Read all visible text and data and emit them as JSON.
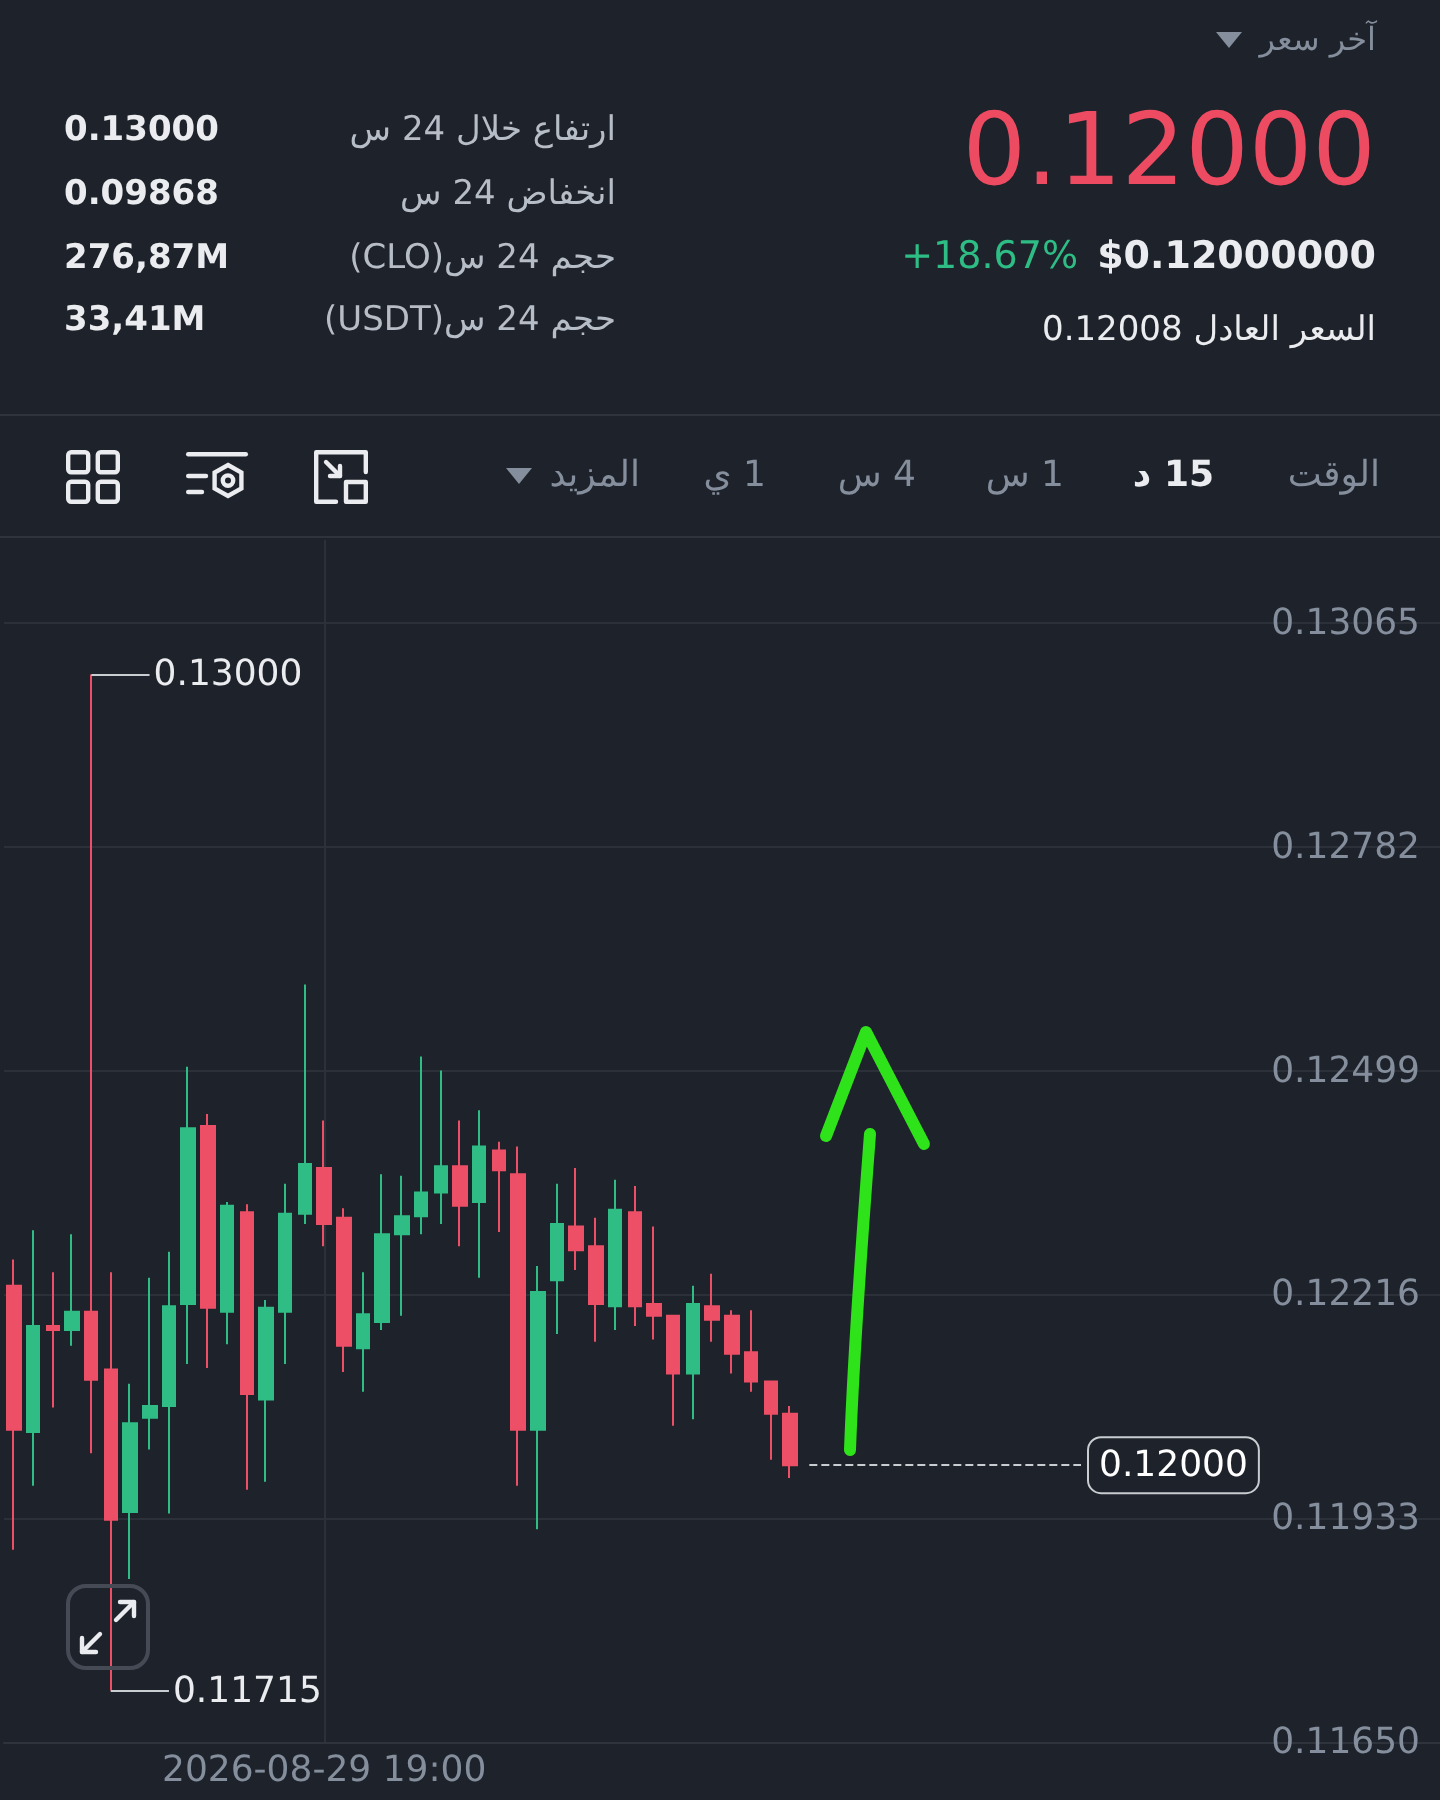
{
  "chart_data": {
    "type": "candlestick",
    "categories": [
      null,
      null,
      null,
      null,
      null,
      null,
      null,
      null,
      null,
      null,
      null,
      null,
      null,
      null,
      null,
      null,
      "2026-08-29 19:00",
      null,
      null,
      null,
      null,
      null,
      null,
      null,
      null,
      null,
      null,
      null,
      null,
      null,
      null,
      null,
      null,
      null,
      null,
      null,
      null,
      null,
      null,
      null,
      null,
      null,
      null,
      null,
      null,
      null,
      null,
      null,
      null,
      null,
      null,
      null,
      null,
      null,
      null,
      null,
      null,
      null,
      null,
      null,
      null,
      null,
      null,
      null,
      null,
      null,
      null,
      null,
      null,
      null,
      null,
      null,
      null,
      null
    ],
    "ohlc": [
      [
        0.12227,
        0.1226,
        0.11893,
        0.12045
      ],
      [
        0.12042,
        0.12297,
        0.11974,
        0.12176
      ],
      [
        0.12176,
        0.12244,
        0.12073,
        0.12171
      ],
      [
        0.12171,
        0.12292,
        0.12151,
        0.12194
      ],
      [
        0.12194,
        0.13,
        0.12015,
        0.12108
      ],
      [
        0.12121,
        0.12244,
        0.11715,
        0.11931
      ],
      [
        0.11941,
        0.12103,
        0.11856,
        0.12053
      ],
      [
        0.1206,
        0.12237,
        0.1202,
        0.12075
      ],
      [
        0.12075,
        0.1227,
        0.11939,
        0.12201
      ],
      [
        0.12204,
        0.12504,
        0.12128,
        0.12426
      ],
      [
        0.12429,
        0.12444,
        0.12123,
        0.12199
      ],
      [
        0.12194,
        0.12333,
        0.12153,
        0.12328
      ],
      [
        0.1232,
        0.1233,
        0.11969,
        0.1209
      ],
      [
        0.12083,
        0.12209,
        0.11979,
        0.12199
      ],
      [
        0.12194,
        0.12356,
        0.12128,
        0.12318
      ],
      [
        0.12318,
        0.12608,
        0.12305,
        0.12381
      ],
      [
        0.12376,
        0.12436,
        0.12277,
        0.12305
      ],
      [
        0.12313,
        0.12325,
        0.12118,
        0.12151
      ],
      [
        0.12148,
        0.12244,
        0.12093,
        0.12191
      ],
      [
        0.12181,
        0.12368,
        0.12171,
        0.12292
      ],
      [
        0.12292,
        0.12366,
        0.12189,
        0.12315
      ],
      [
        0.12315,
        0.12517,
        0.12292,
        0.12345
      ],
      [
        0.12345,
        0.12499,
        0.12305,
        0.12378
      ],
      [
        0.12378,
        0.12436,
        0.12277,
        0.12328
      ],
      [
        0.12333,
        0.12449,
        0.12237,
        0.12403
      ],
      [
        0.12398,
        0.12409,
        0.12295,
        0.12373
      ],
      [
        0.12368,
        0.12403,
        0.11974,
        0.12045
      ],
      [
        0.12045,
        0.12252,
        0.11919,
        0.12219
      ],
      [
        0.12234,
        0.12356,
        0.12166,
        0.12305
      ],
      [
        0.12302,
        0.12376,
        0.12247,
        0.12272
      ],
      [
        0.12277,
        0.12313,
        0.12156,
        0.12204
      ],
      [
        0.12201,
        0.12361,
        0.12171,
        0.12323
      ],
      [
        0.1232,
        0.12353,
        0.12176,
        0.12201
      ],
      [
        0.12204,
        0.12302,
        0.12159,
        0.12189
      ],
      [
        0.12189,
        0.1219,
        0.1205,
        0.12116
      ],
      [
        0.12116,
        0.12227,
        0.12058,
        0.12204
      ],
      [
        0.12201,
        0.12242,
        0.12156,
        0.12184
      ],
      [
        0.12189,
        0.12196,
        0.12116,
        0.12141
      ],
      [
        0.12143,
        0.12196,
        0.12093,
        0.12106
      ],
      [
        0.12106,
        0.12107,
        0.12007,
        0.12065
      ],
      [
        0.12065,
        0.12075,
        0.11984,
        0.12
      ],
      null,
      null,
      null,
      null,
      null,
      null,
      null,
      null,
      null,
      null,
      null,
      null,
      null,
      null,
      null,
      null,
      null,
      null,
      null,
      null,
      null,
      null,
      null,
      null,
      null,
      null,
      null,
      null,
      null,
      null,
      null,
      null,
      null
    ],
    "colors": [
      "#ec4f66",
      "#2fbd85",
      "#ec4f66",
      "#2fbd85",
      "#ec4f66",
      "#ec4f66",
      "#2fbd85",
      "#2fbd85",
      "#2fbd85",
      "#2fbd85",
      "#ec4f66",
      "#2fbd85",
      "#ec4f66",
      "#2fbd85",
      "#2fbd85",
      "#2fbd85",
      "#ec4f66",
      "#ec4f66",
      "#2fbd85",
      "#2fbd85",
      "#2fbd85",
      "#2fbd85",
      "#2fbd85",
      "#ec4f66",
      "#2fbd85",
      "#ec4f66",
      "#ec4f66",
      "#2fbd85",
      "#2fbd85",
      "#ec4f66",
      "#ec4f66",
      "#2fbd85",
      "#ec4f66",
      "#ec4f66",
      "#ec4f66",
      "#2fbd85",
      "#ec4f66",
      "#ec4f66",
      "#ec4f66",
      "#ec4f66",
      "#ec4f66",
      null,
      null,
      null,
      null,
      null,
      null,
      null,
      null,
      null,
      null,
      null,
      null,
      null,
      null,
      null,
      null,
      null,
      null,
      null,
      null,
      null,
      null,
      null,
      null,
      null,
      null,
      null,
      null,
      null,
      null,
      null,
      null,
      null
    ],
    "ylim": [
      0.1165,
      0.1317
    ],
    "yticks": [
      {
        "value": 0.1165,
        "label": "0.11650"
      },
      0.11933,
      0.12216,
      0.12499,
      0.12782,
      0.13065
    ],
    "grid": true,
    "ref_lines": [
      {
        "axis": "y",
        "value": 0.12,
        "label": "0.12000",
        "line_style": "dashed",
        "color": "#c9ccd1"
      }
    ],
    "annotations": [
      "آخر سعر",
      "0.12000",
      "+18.67%",
      "$0.12000000",
      "السعر العادل 0.12008",
      "ارتفاع خلال 24 س",
      "0.13000",
      "انخفاض 24 س",
      "0.09868",
      "حجم 24 س(CLO)",
      "276,87M",
      "حجم 24 س(USDT)",
      "33,41M",
      "الوقت",
      "15 د",
      "1 س",
      "4 س",
      "1 ي",
      "المزيد",
      "0.13000",
      "0.11715"
    ]
  }
}
